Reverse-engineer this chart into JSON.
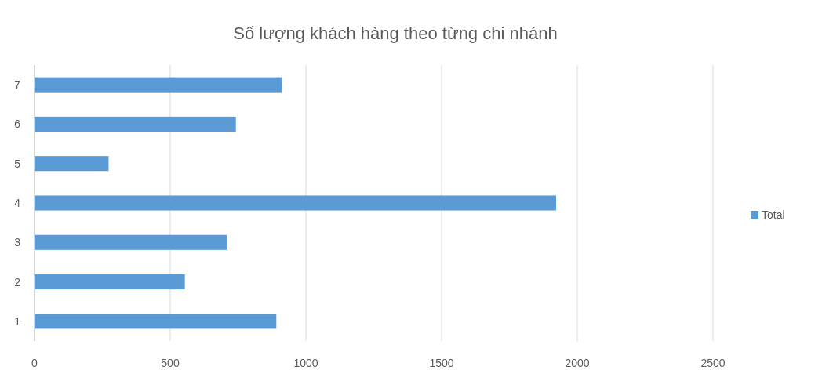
{
  "chart_data": {
    "type": "bar",
    "orientation": "horizontal",
    "title": "Số lượng khách hàng theo từng chi nhánh",
    "categories": [
      "7",
      "6",
      "5",
      "4",
      "3",
      "2",
      "1"
    ],
    "series": [
      {
        "name": "Total",
        "color": "#5b9bd5",
        "values": [
          912,
          742,
          273,
          1922,
          708,
          554,
          891
        ]
      }
    ],
    "xlim": [
      0,
      2500
    ],
    "xticks": [
      0,
      500,
      1000,
      1500,
      2000,
      2500
    ],
    "grid": "x",
    "legend": "right"
  }
}
